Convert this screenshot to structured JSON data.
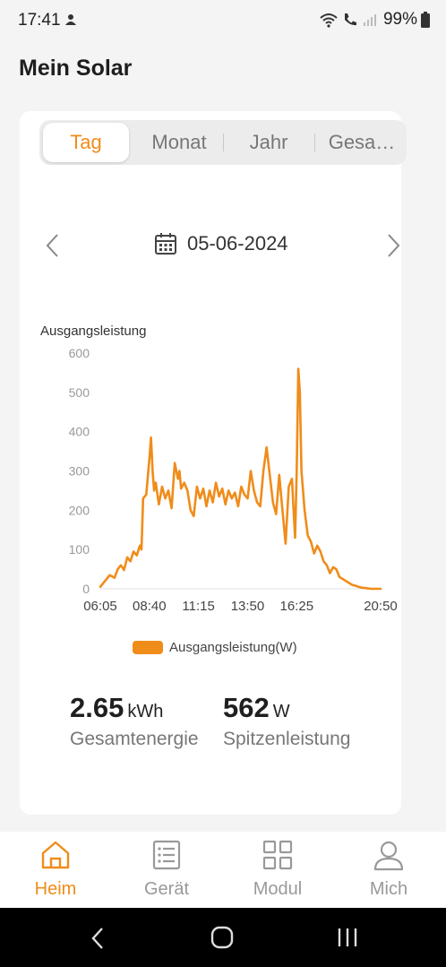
{
  "status_bar": {
    "time": "17:41",
    "battery": "99%"
  },
  "page": {
    "title": "Mein Solar"
  },
  "segments": [
    {
      "label": "Tag",
      "active": true
    },
    {
      "label": "Monat",
      "active": false
    },
    {
      "label": "Jahr",
      "active": false
    },
    {
      "label": "Gesa…",
      "active": false
    }
  ],
  "date": {
    "value": "05-06-2024"
  },
  "colors": {
    "accent": "#f08c1a",
    "text": "#222222",
    "muted": "#777777"
  },
  "chart_data": {
    "type": "line",
    "ylabel": "Ausgangsleistung",
    "ylim": [
      0,
      600
    ],
    "yticks": [
      "0",
      "100",
      "200",
      "300",
      "400",
      "500",
      "600"
    ],
    "xticks": [
      "06:05",
      "08:40",
      "11:15",
      "13:50",
      "16:25",
      "20:50"
    ],
    "x_hours_range": [
      6.083,
      20.833
    ],
    "series": [
      {
        "name": "Ausgangsleistung(W)",
        "x": [
          "06:05",
          "06:20",
          "06:35",
          "06:50",
          "07:00",
          "07:10",
          "07:20",
          "07:30",
          "07:40",
          "07:50",
          "08:00",
          "08:10",
          "08:15",
          "08:20",
          "08:30",
          "08:40",
          "08:45",
          "08:50",
          "08:55",
          "09:00",
          "09:10",
          "09:20",
          "09:30",
          "09:40",
          "09:50",
          "10:00",
          "10:10",
          "10:15",
          "10:20",
          "10:30",
          "10:40",
          "10:50",
          "11:00",
          "11:10",
          "11:20",
          "11:30",
          "11:40",
          "11:50",
          "12:00",
          "12:10",
          "12:20",
          "12:30",
          "12:40",
          "12:50",
          "13:00",
          "13:10",
          "13:20",
          "13:30",
          "13:40",
          "13:50",
          "14:00",
          "14:10",
          "14:20",
          "14:30",
          "14:40",
          "14:50",
          "15:00",
          "15:10",
          "15:20",
          "15:30",
          "15:40",
          "15:50",
          "16:00",
          "16:10",
          "16:15",
          "16:20",
          "16:25",
          "16:30",
          "16:35",
          "16:40",
          "16:50",
          "17:00",
          "17:10",
          "17:20",
          "17:30",
          "17:40",
          "17:50",
          "18:00",
          "18:10",
          "18:20",
          "18:30",
          "18:40",
          "18:50",
          "19:00",
          "19:10",
          "19:20",
          "19:30",
          "19:40",
          "19:50",
          "20:00",
          "20:10",
          "20:20",
          "20:30",
          "20:40",
          "20:50"
        ],
        "y": [
          5,
          20,
          35,
          28,
          50,
          60,
          48,
          80,
          70,
          95,
          85,
          110,
          100,
          230,
          240,
          330,
          385,
          300,
          250,
          270,
          215,
          260,
          230,
          250,
          205,
          320,
          280,
          300,
          255,
          270,
          250,
          200,
          185,
          260,
          230,
          255,
          210,
          250,
          220,
          270,
          235,
          255,
          215,
          250,
          230,
          245,
          210,
          260,
          240,
          230,
          300,
          250,
          220,
          210,
          300,
          360,
          290,
          220,
          190,
          290,
          200,
          115,
          260,
          280,
          205,
          130,
          300,
          560,
          500,
          300,
          200,
          135,
          120,
          90,
          110,
          95,
          70,
          60,
          40,
          55,
          50,
          30,
          25,
          20,
          15,
          10,
          8,
          5,
          3,
          2,
          1,
          0,
          0,
          0,
          0
        ]
      }
    ]
  },
  "summary": {
    "energy_value": "2.65",
    "energy_unit": "kWh",
    "energy_caption": "Gesamtenergie",
    "peak_value": "562",
    "peak_unit": "W",
    "peak_caption": "Spitzenleistung"
  },
  "tabs": [
    {
      "label": "Heim",
      "icon": "home-icon",
      "active": true
    },
    {
      "label": "Gerät",
      "icon": "list-icon",
      "active": false
    },
    {
      "label": "Modul",
      "icon": "grid-icon",
      "active": false
    },
    {
      "label": "Mich",
      "icon": "person-icon",
      "active": false
    }
  ]
}
